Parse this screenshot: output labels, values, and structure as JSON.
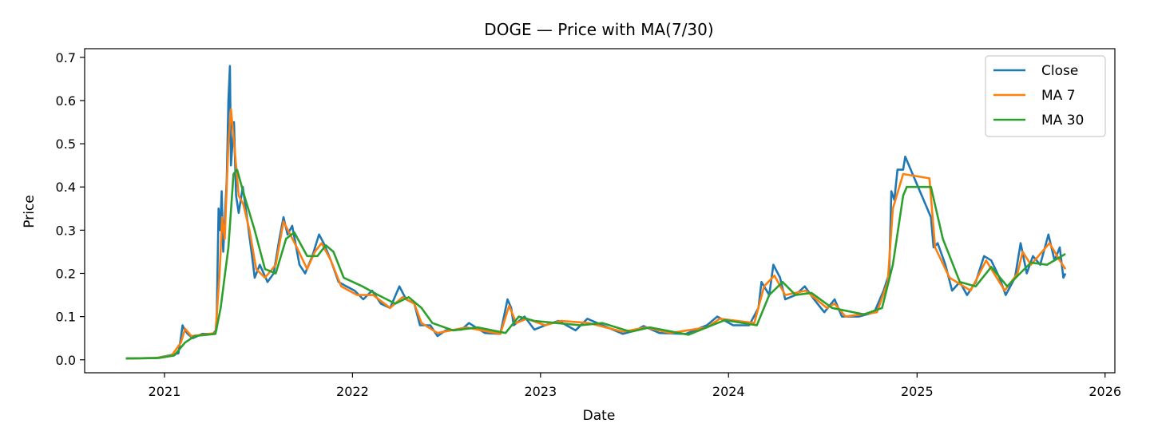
{
  "chart_data": {
    "type": "line",
    "title": "DOGE — Price with MA(7/30)",
    "xlabel": "Date",
    "ylabel": "Price",
    "x_axis": "date",
    "xlim": [
      "2020-07-30",
      "2026-01-20"
    ],
    "ylim": [
      -0.03,
      0.72
    ],
    "x_ticks": [
      "2021",
      "2022",
      "2023",
      "2024",
      "2025",
      "2026"
    ],
    "y_ticks": [
      "0.0",
      "0.1",
      "0.2",
      "0.3",
      "0.4",
      "0.5",
      "0.6",
      "0.7"
    ],
    "grid": false,
    "legend_position": "top-right",
    "series": [
      {
        "name": "Close",
        "color": "#1f77b4",
        "points": [
          [
            "2020-10-18",
            0.003
          ],
          [
            "2020-12-15",
            0.004
          ],
          [
            "2021-01-10",
            0.01
          ],
          [
            "2021-01-28",
            0.015
          ],
          [
            "2021-02-01",
            0.045
          ],
          [
            "2021-02-05",
            0.08
          ],
          [
            "2021-02-09",
            0.07
          ],
          [
            "2021-02-15",
            0.06
          ],
          [
            "2021-02-25",
            0.05
          ],
          [
            "2021-03-15",
            0.06
          ],
          [
            "2021-04-05",
            0.06
          ],
          [
            "2021-04-12",
            0.07
          ],
          [
            "2021-04-16",
            0.35
          ],
          [
            "2021-04-19",
            0.3
          ],
          [
            "2021-04-22",
            0.39
          ],
          [
            "2021-04-25",
            0.25
          ],
          [
            "2021-04-28",
            0.32
          ],
          [
            "2021-05-02",
            0.42
          ],
          [
            "2021-05-05",
            0.6
          ],
          [
            "2021-05-08",
            0.68
          ],
          [
            "2021-05-10",
            0.45
          ],
          [
            "2021-05-13",
            0.5
          ],
          [
            "2021-05-16",
            0.55
          ],
          [
            "2021-05-20",
            0.38
          ],
          [
            "2021-05-25",
            0.34
          ],
          [
            "2021-06-02",
            0.4
          ],
          [
            "2021-06-10",
            0.33
          ],
          [
            "2021-06-20",
            0.24
          ],
          [
            "2021-06-25",
            0.19
          ],
          [
            "2021-07-05",
            0.22
          ],
          [
            "2021-07-20",
            0.18
          ],
          [
            "2021-08-01",
            0.2
          ],
          [
            "2021-08-12",
            0.28
          ],
          [
            "2021-08-20",
            0.33
          ],
          [
            "2021-08-28",
            0.29
          ],
          [
            "2021-09-06",
            0.31
          ],
          [
            "2021-09-20",
            0.22
          ],
          [
            "2021-10-01",
            0.2
          ],
          [
            "2021-10-15",
            0.24
          ],
          [
            "2021-10-28",
            0.29
          ],
          [
            "2021-11-06",
            0.27
          ],
          [
            "2021-11-20",
            0.23
          ],
          [
            "2021-12-05",
            0.18
          ],
          [
            "2021-12-20",
            0.17
          ],
          [
            "2022-01-05",
            0.16
          ],
          [
            "2022-01-22",
            0.14
          ],
          [
            "2022-02-08",
            0.16
          ],
          [
            "2022-02-25",
            0.13
          ],
          [
            "2022-03-15",
            0.12
          ],
          [
            "2022-04-02",
            0.17
          ],
          [
            "2022-04-15",
            0.14
          ],
          [
            "2022-05-01",
            0.13
          ],
          [
            "2022-05-12",
            0.08
          ],
          [
            "2022-06-01",
            0.08
          ],
          [
            "2022-06-15",
            0.055
          ],
          [
            "2022-07-01",
            0.068
          ],
          [
            "2022-08-01",
            0.07
          ],
          [
            "2022-08-15",
            0.085
          ],
          [
            "2022-09-15",
            0.062
          ],
          [
            "2022-10-15",
            0.06
          ],
          [
            "2022-10-29",
            0.14
          ],
          [
            "2022-11-05",
            0.12
          ],
          [
            "2022-11-10",
            0.08
          ],
          [
            "2022-12-01",
            0.1
          ],
          [
            "2022-12-20",
            0.07
          ],
          [
            "2023-01-10",
            0.08
          ],
          [
            "2023-02-05",
            0.09
          ],
          [
            "2023-03-10",
            0.068
          ],
          [
            "2023-04-02",
            0.095
          ],
          [
            "2023-05-01",
            0.08
          ],
          [
            "2023-06-10",
            0.06
          ],
          [
            "2023-07-05",
            0.068
          ],
          [
            "2023-07-20",
            0.078
          ],
          [
            "2023-08-20",
            0.062
          ],
          [
            "2023-10-10",
            0.06
          ],
          [
            "2023-11-20",
            0.08
          ],
          [
            "2023-12-10",
            0.1
          ],
          [
            "2024-01-10",
            0.08
          ],
          [
            "2024-02-10",
            0.08
          ],
          [
            "2024-02-28",
            0.12
          ],
          [
            "2024-03-05",
            0.18
          ],
          [
            "2024-03-20",
            0.15
          ],
          [
            "2024-03-28",
            0.22
          ],
          [
            "2024-04-10",
            0.19
          ],
          [
            "2024-04-20",
            0.14
          ],
          [
            "2024-05-10",
            0.15
          ],
          [
            "2024-05-28",
            0.17
          ],
          [
            "2024-06-15",
            0.14
          ],
          [
            "2024-07-05",
            0.11
          ],
          [
            "2024-07-25",
            0.14
          ],
          [
            "2024-08-08",
            0.1
          ],
          [
            "2024-09-10",
            0.1
          ],
          [
            "2024-10-10",
            0.11
          ],
          [
            "2024-10-28",
            0.16
          ],
          [
            "2024-11-08",
            0.2
          ],
          [
            "2024-11-12",
            0.39
          ],
          [
            "2024-11-18",
            0.37
          ],
          [
            "2024-11-24",
            0.44
          ],
          [
            "2024-12-05",
            0.44
          ],
          [
            "2024-12-09",
            0.47
          ],
          [
            "2025-01-28",
            0.33
          ],
          [
            "2025-02-02",
            0.26
          ],
          [
            "2025-02-10",
            0.27
          ],
          [
            "2025-02-25",
            0.22
          ],
          [
            "2025-03-10",
            0.16
          ],
          [
            "2025-03-25",
            0.18
          ],
          [
            "2025-04-08",
            0.15
          ],
          [
            "2025-04-25",
            0.18
          ],
          [
            "2025-05-11",
            0.24
          ],
          [
            "2025-05-25",
            0.23
          ],
          [
            "2025-06-10",
            0.19
          ],
          [
            "2025-06-22",
            0.15
          ],
          [
            "2025-07-10",
            0.19
          ],
          [
            "2025-07-21",
            0.27
          ],
          [
            "2025-08-02",
            0.2
          ],
          [
            "2025-08-14",
            0.24
          ],
          [
            "2025-08-28",
            0.22
          ],
          [
            "2025-09-13",
            0.29
          ],
          [
            "2025-09-25",
            0.23
          ],
          [
            "2025-10-05",
            0.26
          ],
          [
            "2025-10-12",
            0.19
          ],
          [
            "2025-10-16",
            0.2
          ]
        ]
      },
      {
        "name": "MA 7",
        "color": "#ff7f0e",
        "points": [
          [
            "2020-10-18",
            0.003
          ],
          [
            "2020-12-15",
            0.004
          ],
          [
            "2021-01-15",
            0.01
          ],
          [
            "2021-02-02",
            0.04
          ],
          [
            "2021-02-10",
            0.072
          ],
          [
            "2021-02-22",
            0.055
          ],
          [
            "2021-03-15",
            0.058
          ],
          [
            "2021-04-10",
            0.062
          ],
          [
            "2021-04-18",
            0.2
          ],
          [
            "2021-04-23",
            0.33
          ],
          [
            "2021-04-28",
            0.28
          ],
          [
            "2021-05-05",
            0.5
          ],
          [
            "2021-05-10",
            0.58
          ],
          [
            "2021-05-17",
            0.49
          ],
          [
            "2021-05-25",
            0.38
          ],
          [
            "2021-06-03",
            0.36
          ],
          [
            "2021-06-15",
            0.3
          ],
          [
            "2021-06-28",
            0.21
          ],
          [
            "2021-07-15",
            0.19
          ],
          [
            "2021-08-05",
            0.22
          ],
          [
            "2021-08-20",
            0.32
          ],
          [
            "2021-09-02",
            0.29
          ],
          [
            "2021-09-15",
            0.26
          ],
          [
            "2021-10-05",
            0.21
          ],
          [
            "2021-10-20",
            0.25
          ],
          [
            "2021-11-02",
            0.27
          ],
          [
            "2021-11-20",
            0.23
          ],
          [
            "2021-12-10",
            0.17
          ],
          [
            "2022-01-10",
            0.15
          ],
          [
            "2022-02-10",
            0.15
          ],
          [
            "2022-03-15",
            0.12
          ],
          [
            "2022-04-08",
            0.145
          ],
          [
            "2022-05-01",
            0.13
          ],
          [
            "2022-05-15",
            0.085
          ],
          [
            "2022-06-15",
            0.062
          ],
          [
            "2022-08-10",
            0.075
          ],
          [
            "2022-10-15",
            0.06
          ],
          [
            "2022-11-01",
            0.125
          ],
          [
            "2022-11-15",
            0.085
          ],
          [
            "2022-12-05",
            0.095
          ],
          [
            "2023-01-10",
            0.08
          ],
          [
            "2023-02-10",
            0.09
          ],
          [
            "2023-04-05",
            0.085
          ],
          [
            "2023-06-10",
            0.065
          ],
          [
            "2023-07-25",
            0.075
          ],
          [
            "2023-09-10",
            0.062
          ],
          [
            "2023-11-20",
            0.075
          ],
          [
            "2023-12-15",
            0.095
          ],
          [
            "2024-02-20",
            0.085
          ],
          [
            "2024-03-10",
            0.17
          ],
          [
            "2024-03-30",
            0.195
          ],
          [
            "2024-04-20",
            0.15
          ],
          [
            "2024-05-30",
            0.16
          ],
          [
            "2024-07-10",
            0.12
          ],
          [
            "2024-07-25",
            0.13
          ],
          [
            "2024-08-15",
            0.1
          ],
          [
            "2024-10-15",
            0.11
          ],
          [
            "2024-11-05",
            0.18
          ],
          [
            "2024-11-15",
            0.35
          ],
          [
            "2024-12-05",
            0.43
          ],
          [
            "2025-01-25",
            0.42
          ],
          [
            "2025-02-05",
            0.26
          ],
          [
            "2025-03-05",
            0.19
          ],
          [
            "2025-04-15",
            0.16
          ],
          [
            "2025-05-15",
            0.23
          ],
          [
            "2025-06-20",
            0.16
          ],
          [
            "2025-07-15",
            0.2
          ],
          [
            "2025-07-25",
            0.25
          ],
          [
            "2025-08-10",
            0.22
          ],
          [
            "2025-09-15",
            0.27
          ],
          [
            "2025-10-05",
            0.23
          ],
          [
            "2025-10-16",
            0.21
          ]
        ]
      },
      {
        "name": "MA 30",
        "color": "#2ca02c",
        "points": [
          [
            "2020-10-18",
            0.003
          ],
          [
            "2020-12-20",
            0.004
          ],
          [
            "2021-01-20",
            0.01
          ],
          [
            "2021-02-10",
            0.04
          ],
          [
            "2021-03-01",
            0.055
          ],
          [
            "2021-04-10",
            0.06
          ],
          [
            "2021-04-20",
            0.12
          ],
          [
            "2021-05-05",
            0.26
          ],
          [
            "2021-05-15",
            0.43
          ],
          [
            "2021-05-22",
            0.44
          ],
          [
            "2021-06-05",
            0.38
          ],
          [
            "2021-06-25",
            0.3
          ],
          [
            "2021-07-15",
            0.21
          ],
          [
            "2021-08-05",
            0.2
          ],
          [
            "2021-08-25",
            0.28
          ],
          [
            "2021-09-10",
            0.295
          ],
          [
            "2021-10-05",
            0.24
          ],
          [
            "2021-10-25",
            0.24
          ],
          [
            "2021-11-10",
            0.265
          ],
          [
            "2021-11-25",
            0.25
          ],
          [
            "2021-12-15",
            0.19
          ],
          [
            "2022-01-20",
            0.17
          ],
          [
            "2022-02-20",
            0.15
          ],
          [
            "2022-03-25",
            0.13
          ],
          [
            "2022-04-20",
            0.145
          ],
          [
            "2022-05-15",
            0.12
          ],
          [
            "2022-06-05",
            0.085
          ],
          [
            "2022-07-15",
            0.068
          ],
          [
            "2022-09-01",
            0.075
          ],
          [
            "2022-10-25",
            0.062
          ],
          [
            "2022-11-20",
            0.1
          ],
          [
            "2022-12-20",
            0.09
          ],
          [
            "2023-02-01",
            0.085
          ],
          [
            "2023-03-20",
            0.08
          ],
          [
            "2023-05-01",
            0.085
          ],
          [
            "2023-06-25",
            0.065
          ],
          [
            "2023-08-01",
            0.075
          ],
          [
            "2023-10-15",
            0.058
          ],
          [
            "2023-12-25",
            0.092
          ],
          [
            "2024-02-25",
            0.08
          ],
          [
            "2024-03-20",
            0.15
          ],
          [
            "2024-04-15",
            0.18
          ],
          [
            "2024-05-10",
            0.15
          ],
          [
            "2024-06-10",
            0.155
          ],
          [
            "2024-07-20",
            0.12
          ],
          [
            "2024-09-20",
            0.105
          ],
          [
            "2024-10-25",
            0.12
          ],
          [
            "2024-11-15",
            0.22
          ],
          [
            "2024-12-05",
            0.38
          ],
          [
            "2024-12-12",
            0.4
          ],
          [
            "2025-01-28",
            0.4
          ],
          [
            "2025-02-20",
            0.28
          ],
          [
            "2025-03-25",
            0.18
          ],
          [
            "2025-04-25",
            0.17
          ],
          [
            "2025-05-25",
            0.215
          ],
          [
            "2025-06-25",
            0.17
          ],
          [
            "2025-07-20",
            0.2
          ],
          [
            "2025-08-10",
            0.225
          ],
          [
            "2025-09-10",
            0.22
          ],
          [
            "2025-10-16",
            0.245
          ]
        ]
      }
    ]
  }
}
